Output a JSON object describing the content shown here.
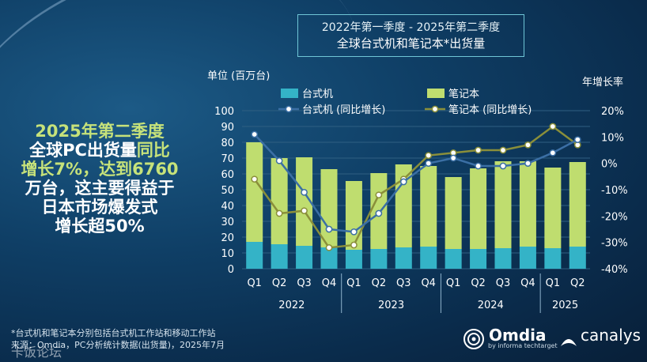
{
  "title": {
    "line1": "2022年第一季度 - 2025年第二季度",
    "line2": "全球台式机和笔记本*出货量"
  },
  "headline": {
    "part1": "2025年第二季度",
    "part2": "全球PC出货量",
    "part3": "同比",
    "part4": "增长7%，达到6760",
    "part5": "万台，这主要得益于",
    "part6": "日本市场爆发式",
    "part7": "增长超50%"
  },
  "footnote": {
    "line1": "*台式机和笔记本分别包括台式机工作站和移动工作站",
    "line2": "来源：Omdia，PC分析统计数据(出货量)，2025年7月"
  },
  "watermark": "卡饭论坛",
  "brands": {
    "omdia": "Omdia",
    "omdia_sub": "by informa techtarget",
    "canalys": "canalys"
  },
  "colors": {
    "desktop": "#34b3c7",
    "notebook": "#bfdd6f",
    "desktop_line": "#3b6fa5",
    "notebook_line": "#8a8f3a",
    "grid": "#2f5f82"
  },
  "chart_data": {
    "type": "bar",
    "ylabel_left": "单位 (百万台)",
    "ylabel_right": "年增长率",
    "y_left_ticks": [
      "0",
      "10",
      "20",
      "30",
      "40",
      "50",
      "60",
      "70",
      "80",
      "90",
      "100"
    ],
    "y_right_ticks": [
      "20%",
      "10%",
      "0%",
      "-10%",
      "-20%",
      "-30%",
      "-40%"
    ],
    "ylim_left": [
      0,
      100
    ],
    "ylim_right": [
      -40,
      20
    ],
    "categories": [
      "Q1",
      "Q2",
      "Q3",
      "Q4",
      "Q1",
      "Q2",
      "Q3",
      "Q4",
      "Q1",
      "Q2",
      "Q3",
      "Q4",
      "Q1",
      "Q2"
    ],
    "years": [
      {
        "label": "2022",
        "start": 0,
        "end": 3
      },
      {
        "label": "2023",
        "start": 4,
        "end": 7
      },
      {
        "label": "2024",
        "start": 8,
        "end": 11
      },
      {
        "label": "2025",
        "start": 12,
        "end": 13
      }
    ],
    "legend": {
      "desktop": "台式机",
      "notebook": "笔记本",
      "desktop_growth": "台式机 (同比增长)",
      "notebook_growth": "笔记本 (同比增长)"
    },
    "series": [
      {
        "name": "台式机",
        "values": [
          17,
          15.5,
          14.5,
          13.5,
          12,
          12.5,
          13.5,
          14,
          12.5,
          12.5,
          13,
          14,
          13,
          14
        ]
      },
      {
        "name": "笔记本",
        "values": [
          63,
          54.5,
          56,
          49.5,
          43.5,
          48,
          52.5,
          51,
          45.5,
          51,
          55,
          54,
          51,
          53.5
        ]
      }
    ],
    "growth_series": [
      {
        "name": "台式机 (同比增长)",
        "values": [
          11,
          1,
          -11,
          -25,
          -26,
          -19,
          -7,
          0,
          2,
          -1,
          -1,
          0,
          4,
          9
        ]
      },
      {
        "name": "笔记本 (同比增长)",
        "values": [
          -6,
          -19,
          -18,
          -32,
          -31,
          -12,
          -6,
          3,
          4,
          5,
          5,
          7,
          14,
          7
        ]
      }
    ]
  }
}
